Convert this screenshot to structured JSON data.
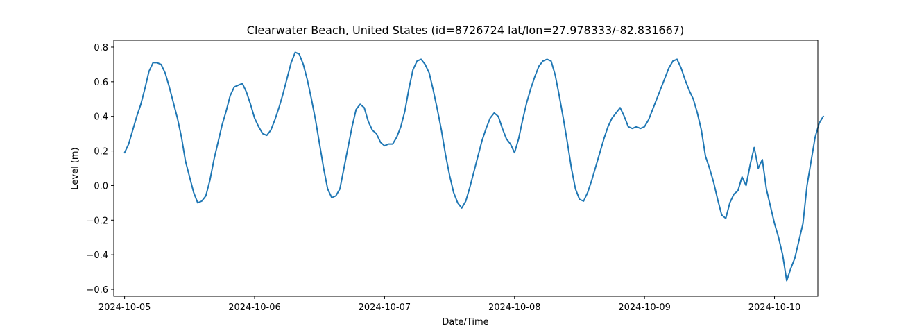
{
  "chart_data": {
    "type": "line",
    "title": "Clearwater Beach, United States (id=8726724 lat/lon=27.978333/-82.831667)",
    "xlabel": "Date/Time",
    "ylabel": "Level (m)",
    "xlim": [
      "2024-10-04T22:00",
      "2024-10-10T08:00"
    ],
    "ylim": [
      -0.64,
      0.84
    ],
    "x_ticks": [
      "2024-10-05",
      "2024-10-06",
      "2024-10-07",
      "2024-10-08",
      "2024-10-09",
      "2024-10-10"
    ],
    "y_ticks": [
      "−0.6",
      "−0.4",
      "−0.2",
      "0.0",
      "0.2",
      "0.4",
      "0.6",
      "0.8"
    ],
    "y_tick_values": [
      -0.6,
      -0.4,
      -0.2,
      0.0,
      0.2,
      0.4,
      0.6,
      0.8
    ],
    "grid": false,
    "legend": "none",
    "series": [
      {
        "color": "#1f77b4",
        "points": [
          [
            "2024-10-05T00:00",
            0.19
          ],
          [
            "2024-10-05T00:45",
            0.24
          ],
          [
            "2024-10-05T01:30",
            0.32
          ],
          [
            "2024-10-05T02:15",
            0.4
          ],
          [
            "2024-10-05T03:00",
            0.47
          ],
          [
            "2024-10-05T03:45",
            0.56
          ],
          [
            "2024-10-05T04:30",
            0.66
          ],
          [
            "2024-10-05T05:15",
            0.71
          ],
          [
            "2024-10-05T06:00",
            0.71
          ],
          [
            "2024-10-05T06:45",
            0.7
          ],
          [
            "2024-10-05T07:30",
            0.65
          ],
          [
            "2024-10-05T08:15",
            0.57
          ],
          [
            "2024-10-05T09:00",
            0.48
          ],
          [
            "2024-10-05T09:45",
            0.39
          ],
          [
            "2024-10-05T10:30",
            0.28
          ],
          [
            "2024-10-05T11:15",
            0.14
          ],
          [
            "2024-10-05T12:00",
            0.05
          ],
          [
            "2024-10-05T12:45",
            -0.04
          ],
          [
            "2024-10-05T13:30",
            -0.1
          ],
          [
            "2024-10-05T14:15",
            -0.09
          ],
          [
            "2024-10-05T15:00",
            -0.06
          ],
          [
            "2024-10-05T15:45",
            0.03
          ],
          [
            "2024-10-05T16:30",
            0.15
          ],
          [
            "2024-10-05T17:15",
            0.25
          ],
          [
            "2024-10-05T18:00",
            0.35
          ],
          [
            "2024-10-05T18:45",
            0.43
          ],
          [
            "2024-10-05T19:30",
            0.52
          ],
          [
            "2024-10-05T20:15",
            0.57
          ],
          [
            "2024-10-05T21:00",
            0.58
          ],
          [
            "2024-10-05T21:45",
            0.59
          ],
          [
            "2024-10-05T22:30",
            0.54
          ],
          [
            "2024-10-05T23:15",
            0.47
          ],
          [
            "2024-10-06T00:00",
            0.39
          ],
          [
            "2024-10-06T00:45",
            0.34
          ],
          [
            "2024-10-06T01:30",
            0.3
          ],
          [
            "2024-10-06T02:15",
            0.29
          ],
          [
            "2024-10-06T03:00",
            0.32
          ],
          [
            "2024-10-06T03:45",
            0.38
          ],
          [
            "2024-10-06T04:30",
            0.45
          ],
          [
            "2024-10-06T05:15",
            0.53
          ],
          [
            "2024-10-06T06:00",
            0.62
          ],
          [
            "2024-10-06T06:45",
            0.71
          ],
          [
            "2024-10-06T07:30",
            0.77
          ],
          [
            "2024-10-06T08:15",
            0.76
          ],
          [
            "2024-10-06T09:00",
            0.7
          ],
          [
            "2024-10-06T09:45",
            0.61
          ],
          [
            "2024-10-06T10:30",
            0.5
          ],
          [
            "2024-10-06T11:15",
            0.38
          ],
          [
            "2024-10-06T12:00",
            0.24
          ],
          [
            "2024-10-06T12:45",
            0.1
          ],
          [
            "2024-10-06T13:30",
            -0.02
          ],
          [
            "2024-10-06T14:15",
            -0.07
          ],
          [
            "2024-10-06T15:00",
            -0.06
          ],
          [
            "2024-10-06T15:45",
            -0.02
          ],
          [
            "2024-10-06T16:30",
            0.1
          ],
          [
            "2024-10-06T17:15",
            0.22
          ],
          [
            "2024-10-06T18:00",
            0.34
          ],
          [
            "2024-10-06T18:45",
            0.44
          ],
          [
            "2024-10-06T19:30",
            0.47
          ],
          [
            "2024-10-06T20:15",
            0.45
          ],
          [
            "2024-10-06T21:00",
            0.37
          ],
          [
            "2024-10-06T21:45",
            0.32
          ],
          [
            "2024-10-06T22:30",
            0.3
          ],
          [
            "2024-10-06T23:15",
            0.25
          ],
          [
            "2024-10-07T00:00",
            0.23
          ],
          [
            "2024-10-07T00:45",
            0.24
          ],
          [
            "2024-10-07T01:30",
            0.24
          ],
          [
            "2024-10-07T02:15",
            0.28
          ],
          [
            "2024-10-07T03:00",
            0.34
          ],
          [
            "2024-10-07T03:45",
            0.43
          ],
          [
            "2024-10-07T04:30",
            0.56
          ],
          [
            "2024-10-07T05:15",
            0.67
          ],
          [
            "2024-10-07T06:00",
            0.72
          ],
          [
            "2024-10-07T06:45",
            0.73
          ],
          [
            "2024-10-07T07:30",
            0.7
          ],
          [
            "2024-10-07T08:15",
            0.65
          ],
          [
            "2024-10-07T09:00",
            0.55
          ],
          [
            "2024-10-07T09:45",
            0.44
          ],
          [
            "2024-10-07T10:30",
            0.32
          ],
          [
            "2024-10-07T11:15",
            0.18
          ],
          [
            "2024-10-07T12:00",
            0.06
          ],
          [
            "2024-10-07T12:45",
            -0.04
          ],
          [
            "2024-10-07T13:30",
            -0.1
          ],
          [
            "2024-10-07T14:15",
            -0.13
          ],
          [
            "2024-10-07T15:00",
            -0.09
          ],
          [
            "2024-10-07T15:45",
            -0.01
          ],
          [
            "2024-10-07T16:30",
            0.08
          ],
          [
            "2024-10-07T17:15",
            0.17
          ],
          [
            "2024-10-07T18:00",
            0.26
          ],
          [
            "2024-10-07T18:45",
            0.33
          ],
          [
            "2024-10-07T19:30",
            0.39
          ],
          [
            "2024-10-07T20:15",
            0.42
          ],
          [
            "2024-10-07T21:00",
            0.4
          ],
          [
            "2024-10-07T21:45",
            0.33
          ],
          [
            "2024-10-07T22:30",
            0.27
          ],
          [
            "2024-10-07T23:15",
            0.24
          ],
          [
            "2024-10-08T00:00",
            0.19
          ],
          [
            "2024-10-08T00:45",
            0.27
          ],
          [
            "2024-10-08T01:30",
            0.38
          ],
          [
            "2024-10-08T02:15",
            0.48
          ],
          [
            "2024-10-08T03:00",
            0.56
          ],
          [
            "2024-10-08T03:45",
            0.63
          ],
          [
            "2024-10-08T04:30",
            0.69
          ],
          [
            "2024-10-08T05:15",
            0.72
          ],
          [
            "2024-10-08T06:00",
            0.73
          ],
          [
            "2024-10-08T06:45",
            0.72
          ],
          [
            "2024-10-08T07:30",
            0.64
          ],
          [
            "2024-10-08T08:15",
            0.52
          ],
          [
            "2024-10-08T09:00",
            0.39
          ],
          [
            "2024-10-08T09:45",
            0.25
          ],
          [
            "2024-10-08T10:30",
            0.1
          ],
          [
            "2024-10-08T11:15",
            -0.02
          ],
          [
            "2024-10-08T12:00",
            -0.08
          ],
          [
            "2024-10-08T12:45",
            -0.09
          ],
          [
            "2024-10-08T13:30",
            -0.04
          ],
          [
            "2024-10-08T14:15",
            0.03
          ],
          [
            "2024-10-08T15:00",
            0.11
          ],
          [
            "2024-10-08T15:45",
            0.19
          ],
          [
            "2024-10-08T16:30",
            0.27
          ],
          [
            "2024-10-08T17:15",
            0.34
          ],
          [
            "2024-10-08T18:00",
            0.39
          ],
          [
            "2024-10-08T18:45",
            0.42
          ],
          [
            "2024-10-08T19:30",
            0.45
          ],
          [
            "2024-10-08T20:15",
            0.4
          ],
          [
            "2024-10-08T21:00",
            0.34
          ],
          [
            "2024-10-08T21:45",
            0.33
          ],
          [
            "2024-10-08T22:30",
            0.34
          ],
          [
            "2024-10-08T23:15",
            0.33
          ],
          [
            "2024-10-09T00:00",
            0.34
          ],
          [
            "2024-10-09T00:45",
            0.38
          ],
          [
            "2024-10-09T01:30",
            0.44
          ],
          [
            "2024-10-09T02:15",
            0.5
          ],
          [
            "2024-10-09T03:00",
            0.56
          ],
          [
            "2024-10-09T03:45",
            0.62
          ],
          [
            "2024-10-09T04:30",
            0.68
          ],
          [
            "2024-10-09T05:15",
            0.72
          ],
          [
            "2024-10-09T06:00",
            0.73
          ],
          [
            "2024-10-09T06:45",
            0.68
          ],
          [
            "2024-10-09T07:30",
            0.61
          ],
          [
            "2024-10-09T08:15",
            0.55
          ],
          [
            "2024-10-09T09:00",
            0.5
          ],
          [
            "2024-10-09T09:45",
            0.42
          ],
          [
            "2024-10-09T10:30",
            0.32
          ],
          [
            "2024-10-09T11:15",
            0.17
          ],
          [
            "2024-10-09T12:00",
            0.1
          ],
          [
            "2024-10-09T12:45",
            0.02
          ],
          [
            "2024-10-09T13:30",
            -0.08
          ],
          [
            "2024-10-09T14:15",
            -0.17
          ],
          [
            "2024-10-09T15:00",
            -0.19
          ],
          [
            "2024-10-09T15:45",
            -0.1
          ],
          [
            "2024-10-09T16:30",
            -0.05
          ],
          [
            "2024-10-09T17:15",
            -0.03
          ],
          [
            "2024-10-09T18:00",
            0.05
          ],
          [
            "2024-10-09T18:45",
            0.0
          ],
          [
            "2024-10-09T19:30",
            0.12
          ],
          [
            "2024-10-09T20:15",
            0.22
          ],
          [
            "2024-10-09T21:00",
            0.1
          ],
          [
            "2024-10-09T21:45",
            0.15
          ],
          [
            "2024-10-09T22:30",
            -0.02
          ],
          [
            "2024-10-09T23:15",
            -0.12
          ],
          [
            "2024-10-10T00:00",
            -0.22
          ],
          [
            "2024-10-10T00:45",
            -0.3
          ],
          [
            "2024-10-10T01:30",
            -0.4
          ],
          [
            "2024-10-10T02:15",
            -0.55
          ],
          [
            "2024-10-10T03:00",
            -0.48
          ],
          [
            "2024-10-10T03:45",
            -0.42
          ],
          [
            "2024-10-10T04:30",
            -0.32
          ],
          [
            "2024-10-10T05:15",
            -0.22
          ],
          [
            "2024-10-10T06:00",
            0.0
          ],
          [
            "2024-10-10T06:45",
            0.14
          ],
          [
            "2024-10-10T07:30",
            0.28
          ],
          [
            "2024-10-10T08:15",
            0.36
          ],
          [
            "2024-10-10T09:00",
            0.4
          ]
        ]
      }
    ]
  }
}
